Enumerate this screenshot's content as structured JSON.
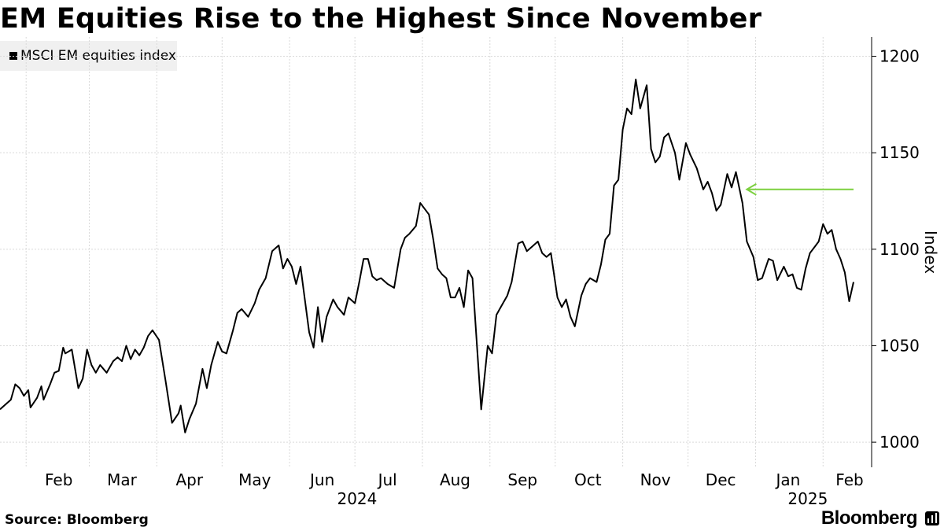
{
  "header": {
    "title": "EM Equities Rise to the Highest Since November"
  },
  "footer": {
    "source": "Source: Bloomberg",
    "brand": "Bloomberg",
    "brand_icon": "bar-chart-icon"
  },
  "chart_data": {
    "type": "line",
    "title": "EM Equities Rise to the Highest Since November",
    "ylabel": "Index",
    "ylim": [
      987,
      1210
    ],
    "yticks": [
      1000,
      1050,
      1100,
      1150,
      1200
    ],
    "y_axis_side": "right",
    "grid": true,
    "legend": {
      "position": "top-left",
      "entries": [
        "MSCI EM equities index"
      ]
    },
    "xlim": [
      "2024-01-20",
      "2025-02-15"
    ],
    "x_month_ticks": [
      "2024-02-01",
      "2024-03-01",
      "2024-04-01",
      "2024-05-01",
      "2024-06-01",
      "2024-07-01",
      "2024-08-01",
      "2024-09-01",
      "2024-10-01",
      "2024-11-01",
      "2024-12-01",
      "2025-01-01",
      "2025-02-01"
    ],
    "x_month_labels": [
      "Feb",
      "Mar",
      "Apr",
      "May",
      "Jun",
      "Jul",
      "Aug",
      "Sep",
      "Oct",
      "Nov",
      "Dec",
      "Jan",
      "Feb"
    ],
    "x_year_labels": [
      {
        "label": "2024",
        "date": "2024-07-02"
      },
      {
        "label": "2025",
        "date": "2025-01-25"
      }
    ],
    "series": [
      {
        "name": "MSCI EM equities index",
        "color": "#000000",
        "points": [
          [
            "2024-01-20",
            1017
          ],
          [
            "2024-01-25",
            1022
          ],
          [
            "2024-01-27",
            1030
          ],
          [
            "2024-01-29",
            1028
          ],
          [
            "2024-01-31",
            1024
          ],
          [
            "2024-02-02",
            1027
          ],
          [
            "2024-02-03",
            1018
          ],
          [
            "2024-02-06",
            1023
          ],
          [
            "2024-02-08",
            1029
          ],
          [
            "2024-02-09",
            1022
          ],
          [
            "2024-02-12",
            1030
          ],
          [
            "2024-02-14",
            1036
          ],
          [
            "2024-02-16",
            1037
          ],
          [
            "2024-02-18",
            1049
          ],
          [
            "2024-02-19",
            1046
          ],
          [
            "2024-02-22",
            1048
          ],
          [
            "2024-02-25",
            1028
          ],
          [
            "2024-02-27",
            1033
          ],
          [
            "2024-02-29",
            1048
          ],
          [
            "2024-03-02",
            1040
          ],
          [
            "2024-03-04",
            1036
          ],
          [
            "2024-03-06",
            1040
          ],
          [
            "2024-03-09",
            1036
          ],
          [
            "2024-03-12",
            1042
          ],
          [
            "2024-03-14",
            1044
          ],
          [
            "2024-03-16",
            1042
          ],
          [
            "2024-03-18",
            1050
          ],
          [
            "2024-03-20",
            1043
          ],
          [
            "2024-03-22",
            1048
          ],
          [
            "2024-03-24",
            1045
          ],
          [
            "2024-03-26",
            1049
          ],
          [
            "2024-03-28",
            1055
          ],
          [
            "2024-03-30",
            1058
          ],
          [
            "2024-04-02",
            1053
          ],
          [
            "2024-04-05",
            1032
          ],
          [
            "2024-04-08",
            1010
          ],
          [
            "2024-04-11",
            1015
          ],
          [
            "2024-04-12",
            1019
          ],
          [
            "2024-04-14",
            1005
          ],
          [
            "2024-04-16",
            1012
          ],
          [
            "2024-04-19",
            1020
          ],
          [
            "2024-04-22",
            1038
          ],
          [
            "2024-04-24",
            1028
          ],
          [
            "2024-04-26",
            1040
          ],
          [
            "2024-04-29",
            1052
          ],
          [
            "2024-05-01",
            1047
          ],
          [
            "2024-05-03",
            1046
          ],
          [
            "2024-05-06",
            1058
          ],
          [
            "2024-05-08",
            1067
          ],
          [
            "2024-05-10",
            1069
          ],
          [
            "2024-05-13",
            1065
          ],
          [
            "2024-05-16",
            1072
          ],
          [
            "2024-05-18",
            1079
          ],
          [
            "2024-05-21",
            1085
          ],
          [
            "2024-05-24",
            1099
          ],
          [
            "2024-05-27",
            1102
          ],
          [
            "2024-05-29",
            1090
          ],
          [
            "2024-05-31",
            1095
          ],
          [
            "2024-06-02",
            1091
          ],
          [
            "2024-06-04",
            1082
          ],
          [
            "2024-06-06",
            1091
          ],
          [
            "2024-06-10",
            1057
          ],
          [
            "2024-06-12",
            1049
          ],
          [
            "2024-06-14",
            1070
          ],
          [
            "2024-06-16",
            1052
          ],
          [
            "2024-06-18",
            1065
          ],
          [
            "2024-06-21",
            1074
          ],
          [
            "2024-06-23",
            1070
          ],
          [
            "2024-06-26",
            1066
          ],
          [
            "2024-06-28",
            1075
          ],
          [
            "2024-07-01",
            1072
          ],
          [
            "2024-07-03",
            1083
          ],
          [
            "2024-07-05",
            1095
          ],
          [
            "2024-07-07",
            1095
          ],
          [
            "2024-07-09",
            1086
          ],
          [
            "2024-07-11",
            1084
          ],
          [
            "2024-07-13",
            1085
          ],
          [
            "2024-07-16",
            1082
          ],
          [
            "2024-07-19",
            1080
          ],
          [
            "2024-07-22",
            1100
          ],
          [
            "2024-07-24",
            1106
          ],
          [
            "2024-07-26",
            1108
          ],
          [
            "2024-07-29",
            1112
          ],
          [
            "2024-07-31",
            1124
          ],
          [
            "2024-08-02",
            1121
          ],
          [
            "2024-08-04",
            1118
          ],
          [
            "2024-08-06",
            1105
          ],
          [
            "2024-08-08",
            1090
          ],
          [
            "2024-08-10",
            1087
          ],
          [
            "2024-08-12",
            1085
          ],
          [
            "2024-08-14",
            1075
          ],
          [
            "2024-08-16",
            1075
          ],
          [
            "2024-08-18",
            1080
          ],
          [
            "2024-08-20",
            1070
          ],
          [
            "2024-08-22",
            1089
          ],
          [
            "2024-08-24",
            1085
          ],
          [
            "2024-08-28",
            1017
          ],
          [
            "2024-08-31",
            1050
          ],
          [
            "2024-09-02",
            1046
          ],
          [
            "2024-09-04",
            1066
          ],
          [
            "2024-09-06",
            1070
          ],
          [
            "2024-09-09",
            1076
          ],
          [
            "2024-09-11",
            1083
          ],
          [
            "2024-09-14",
            1103
          ],
          [
            "2024-09-16",
            1104
          ],
          [
            "2024-09-18",
            1099
          ],
          [
            "2024-09-20",
            1101
          ],
          [
            "2024-09-23",
            1104
          ],
          [
            "2024-09-25",
            1098
          ],
          [
            "2024-09-27",
            1096
          ],
          [
            "2024-09-29",
            1098
          ],
          [
            "2024-10-02",
            1075
          ],
          [
            "2024-10-04",
            1070
          ],
          [
            "2024-10-06",
            1074
          ],
          [
            "2024-10-08",
            1065
          ],
          [
            "2024-10-10",
            1060
          ],
          [
            "2024-10-13",
            1076
          ],
          [
            "2024-10-15",
            1082
          ],
          [
            "2024-10-17",
            1085
          ],
          [
            "2024-10-20",
            1083
          ],
          [
            "2024-10-22",
            1092
          ],
          [
            "2024-10-24",
            1105
          ],
          [
            "2024-10-26",
            1108
          ],
          [
            "2024-10-28",
            1133
          ],
          [
            "2024-10-30",
            1136
          ],
          [
            "2024-11-01",
            1162
          ],
          [
            "2024-11-03",
            1173
          ],
          [
            "2024-11-05",
            1170
          ],
          [
            "2024-11-07",
            1188
          ],
          [
            "2024-11-09",
            1173
          ],
          [
            "2024-11-12",
            1185
          ],
          [
            "2024-11-14",
            1152
          ],
          [
            "2024-11-16",
            1145
          ],
          [
            "2024-11-18",
            1148
          ],
          [
            "2024-11-20",
            1158
          ],
          [
            "2024-11-22",
            1160
          ],
          [
            "2024-11-25",
            1150
          ],
          [
            "2024-11-27",
            1136
          ],
          [
            "2024-11-30",
            1155
          ],
          [
            "2024-12-02",
            1149
          ],
          [
            "2024-12-05",
            1142
          ],
          [
            "2024-12-08",
            1131
          ],
          [
            "2024-12-10",
            1135
          ],
          [
            "2024-12-12",
            1129
          ],
          [
            "2024-12-14",
            1120
          ],
          [
            "2024-12-16",
            1123
          ],
          [
            "2024-12-19",
            1139
          ],
          [
            "2024-12-21",
            1132
          ],
          [
            "2024-12-23",
            1140
          ],
          [
            "2024-12-26",
            1124
          ],
          [
            "2024-12-28",
            1104
          ],
          [
            "2024-12-31",
            1096
          ],
          [
            "2025-01-02",
            1084
          ],
          [
            "2025-01-04",
            1085
          ],
          [
            "2025-01-07",
            1095
          ],
          [
            "2025-01-09",
            1094
          ],
          [
            "2025-01-11",
            1084
          ],
          [
            "2025-01-14",
            1091
          ],
          [
            "2025-01-16",
            1086
          ],
          [
            "2025-01-18",
            1087
          ],
          [
            "2025-01-20",
            1080
          ],
          [
            "2025-01-22",
            1079
          ],
          [
            "2025-01-24",
            1090
          ],
          [
            "2025-01-26",
            1098
          ],
          [
            "2025-01-28",
            1101
          ],
          [
            "2025-01-30",
            1104
          ],
          [
            "2025-02-01",
            1113
          ],
          [
            "2025-02-03",
            1108
          ],
          [
            "2025-02-05",
            1110
          ],
          [
            "2025-02-07",
            1100
          ],
          [
            "2025-02-09",
            1095
          ],
          [
            "2025-02-11",
            1088
          ],
          [
            "2025-02-13",
            1073
          ],
          [
            "2025-02-15",
            1083
          ]
        ]
      }
    ],
    "annotation": {
      "type": "arrow",
      "color": "#7cd03f",
      "from": [
        "2025-02-15",
        1131
      ],
      "to": [
        "2024-12-28",
        1131
      ]
    }
  }
}
